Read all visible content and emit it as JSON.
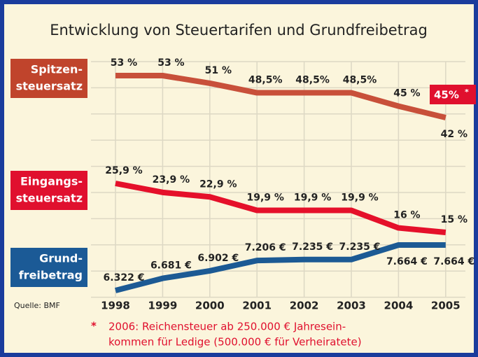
{
  "chart_data": {
    "type": "line",
    "title": "Entwicklung von Steuertarifen und Grundfreibetrag",
    "categories": [
      "1998",
      "1999",
      "2000",
      "2001",
      "2002",
      "2003",
      "2004",
      "2005"
    ],
    "series": [
      {
        "name": "Spitzen-\nsteuersatz",
        "color": "#c8503a",
        "box_color": "#c0442c",
        "values": [
          53,
          53,
          51,
          48.5,
          48.5,
          48.5,
          45,
          42
        ],
        "value_labels": [
          "53 %",
          "53 %",
          "51 %",
          "48,5%",
          "48,5%",
          "48,5%",
          "45 %",
          "42 %"
        ]
      },
      {
        "name": "Eingangs-\nsteuersatz",
        "color": "#e5102a",
        "box_color": "#e0102e",
        "values": [
          25.9,
          23.9,
          22.9,
          19.9,
          19.9,
          19.9,
          16,
          15
        ],
        "value_labels": [
          "25,9 %",
          "23,9 %",
          "22,9 %",
          "19,9 %",
          "19,9 %",
          "19,9 %",
          "16 %",
          "15 %"
        ]
      },
      {
        "name": "Grund-\nfreibetrag",
        "color": "#1c5a94",
        "box_color": "#1b5a96",
        "values": [
          6322,
          6681,
          6902,
          7206,
          7235,
          7235,
          7664,
          7664
        ],
        "value_labels": [
          "6.322 €",
          "6.681 €",
          "6.902 €",
          "7.206 €",
          "7.235 €",
          "7.235 €",
          "7.664 €",
          "7.664 €"
        ]
      }
    ],
    "annotation": {
      "text": "45%",
      "marker": "*"
    },
    "source": "Quelle: BMF",
    "footnote": {
      "marker": "*",
      "lines": [
        "2006: Reichensteuer ab 250.000 € Jahresein-",
        "kommen für Ledige (500.000 € für Verheiratete)"
      ]
    }
  }
}
